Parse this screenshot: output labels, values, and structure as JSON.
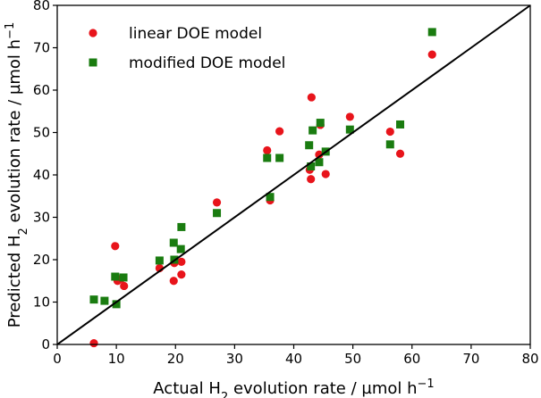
{
  "chart_data": {
    "type": "scatter",
    "title": "",
    "xlabel": {
      "pre": "Actual H",
      "sub": "2",
      "post": " evolution rate / µmol h",
      "sup": "−1"
    },
    "ylabel": {
      "pre": "Predicted H",
      "sub": "2",
      "post": " evolution rate / µmol h",
      "sup": "−1"
    },
    "xlim": [
      0,
      80
    ],
    "ylim": [
      0,
      80
    ],
    "xticks": [
      0,
      10,
      20,
      30,
      40,
      50,
      60,
      70,
      80
    ],
    "yticks": [
      0,
      10,
      20,
      30,
      40,
      50,
      60,
      70,
      80
    ],
    "grid": false,
    "legend_position": "top-left",
    "reference_line": {
      "name": "y = x",
      "color": "#000000"
    },
    "series": [
      {
        "name": "linear DOE model",
        "marker": "circle",
        "color": "#e8141b",
        "points": [
          [
            6.2,
            0.3
          ],
          [
            9.8,
            23.2
          ],
          [
            10.2,
            15.0
          ],
          [
            10.8,
            15.5
          ],
          [
            11.3,
            13.8
          ],
          [
            17.3,
            18.0
          ],
          [
            19.7,
            15.0
          ],
          [
            19.8,
            19.2
          ],
          [
            21.0,
            19.5
          ],
          [
            21.0,
            16.5
          ],
          [
            27.0,
            33.5
          ],
          [
            35.5,
            45.8
          ],
          [
            36.0,
            34.0
          ],
          [
            37.6,
            50.3
          ],
          [
            42.7,
            41.2
          ],
          [
            42.9,
            39.0
          ],
          [
            43.0,
            58.3
          ],
          [
            44.3,
            44.8
          ],
          [
            44.5,
            51.8
          ],
          [
            45.4,
            40.2
          ],
          [
            49.5,
            53.7
          ],
          [
            56.3,
            50.2
          ],
          [
            58.0,
            45.0
          ],
          [
            63.4,
            68.4
          ]
        ]
      },
      {
        "name": "modified DOE model",
        "marker": "square",
        "color": "#1a7c10",
        "points": [
          [
            6.2,
            10.6
          ],
          [
            8.0,
            10.3
          ],
          [
            9.8,
            16.0
          ],
          [
            10.0,
            9.5
          ],
          [
            11.2,
            15.8
          ],
          [
            17.3,
            19.8
          ],
          [
            19.7,
            24.0
          ],
          [
            19.8,
            20.0
          ],
          [
            20.9,
            22.5
          ],
          [
            21.0,
            27.7
          ],
          [
            27.0,
            31.0
          ],
          [
            35.5,
            44.0
          ],
          [
            36.0,
            34.8
          ],
          [
            37.6,
            44.0
          ],
          [
            42.6,
            47.0
          ],
          [
            42.9,
            42.0
          ],
          [
            43.2,
            50.5
          ],
          [
            44.3,
            43.0
          ],
          [
            44.5,
            52.3
          ],
          [
            45.4,
            45.5
          ],
          [
            49.5,
            50.7
          ],
          [
            56.3,
            47.2
          ],
          [
            58.0,
            51.9
          ],
          [
            63.4,
            73.7
          ]
        ]
      }
    ]
  }
}
